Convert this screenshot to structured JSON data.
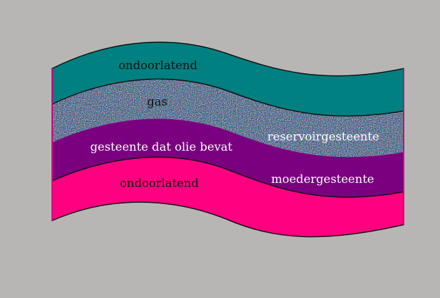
{
  "diagram": {
    "layers": [
      {
        "id": "top-seal",
        "label": "ondoorlatend",
        "color": "#008080"
      },
      {
        "id": "gas",
        "label": "gas",
        "color": "#3a5aa8"
      },
      {
        "id": "reservoir",
        "label": "reservoirgesteente",
        "color": "#4a6a4a"
      },
      {
        "id": "oil",
        "label": "gesteente dat olie bevat",
        "color": "#7a0080"
      },
      {
        "id": "source",
        "label": "moedergesteente",
        "color": "#7a0080"
      },
      {
        "id": "bottom-seal",
        "label": "ondoorlatend",
        "color": "#ff0080"
      }
    ]
  }
}
